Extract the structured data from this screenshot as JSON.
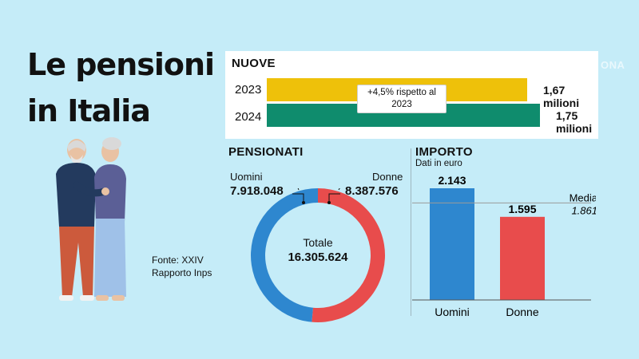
{
  "title": "Le pensioni in Italia",
  "watermark": "ONA",
  "source": "Fonte: XXIV Rapporto Inps",
  "nuove": {
    "title": "NUOVE",
    "note": "+4,5% rispetto al 2023",
    "bars": [
      {
        "year": "2023",
        "value": 1.67,
        "label": "1,67 milioni",
        "color": "#eec10a"
      },
      {
        "year": "2024",
        "value": 1.75,
        "label": "1,75 milioni",
        "color": "#0f8c6d"
      }
    ]
  },
  "pensionati": {
    "title": "PENSIONATI",
    "uomini_label": "Uomini",
    "uomini_value": "7.918.048",
    "donne_label": "Donne",
    "donne_value": "8.387.576",
    "total_label": "Totale",
    "total_value": "16.305.624",
    "colors": {
      "uomini": "#2e87cf",
      "donne": "#e84c4c"
    }
  },
  "importo": {
    "title": "IMPORTO",
    "subtitle": "Dati in euro",
    "media_label": "Media",
    "media_value": "1.861"
  },
  "chart_data": [
    {
      "type": "bar",
      "orientation": "horizontal",
      "title": "NUOVE",
      "categories": [
        "2023",
        "2024"
      ],
      "values": [
        1.67,
        1.75
      ],
      "value_labels": [
        "1,67 milioni",
        "1,75 milioni"
      ],
      "annotation": "+4,5% rispetto al 2023"
    },
    {
      "type": "pie",
      "title": "PENSIONATI",
      "categories": [
        "Uomini",
        "Donne"
      ],
      "values": [
        7918048,
        8387576
      ],
      "value_labels": [
        "7.918.048",
        "8.387.576"
      ],
      "total": 16305624
    },
    {
      "type": "bar",
      "title": "IMPORTO",
      "subtitle": "Dati in euro",
      "categories": [
        "Uomini",
        "Donne"
      ],
      "values": [
        2143,
        1595
      ],
      "value_labels": [
        "2.143",
        "1.595"
      ],
      "colors": [
        "#2e87cf",
        "#e84c4c"
      ],
      "reference_line": {
        "label": "Media",
        "value": 1861,
        "value_label": "1.861"
      },
      "ylim": [
        0,
        2143
      ]
    }
  ]
}
